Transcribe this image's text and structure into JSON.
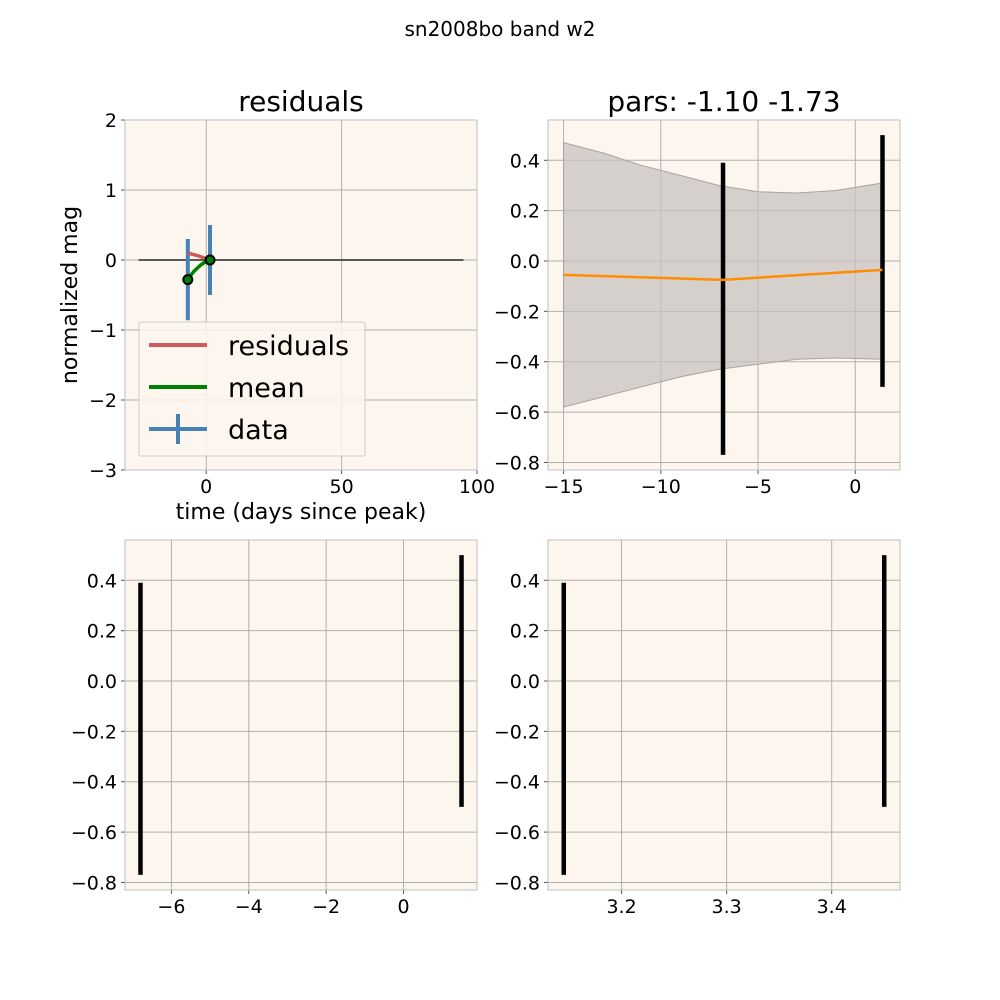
{
  "figure": {
    "suptitle": "sn2008bo band w2"
  },
  "colors": {
    "panel_bg": "#fdf6ee",
    "grid": "#b0b0b0",
    "spine": "#bfbfbf",
    "residuals": "#cd5c5c",
    "mean": "#008000",
    "data": "#4682b4",
    "fit_line": "#ff8c00",
    "band_fill": "#c8c3c0",
    "errorbar": "#000000",
    "zero_line": "#595959"
  },
  "chart_data": [
    {
      "id": "residuals",
      "type": "line",
      "title": "residuals",
      "xlabel": "time (days since peak)",
      "ylabel": "normalized mag",
      "xlim": [
        -30,
        100
      ],
      "ylim": [
        -3,
        2
      ],
      "xticks": [
        0,
        50,
        100
      ],
      "yticks": [
        -3,
        -2,
        -1,
        0,
        1,
        2
      ],
      "grid": true,
      "legend": {
        "position": "lower-left",
        "entries": [
          "residuals",
          "mean",
          "data"
        ]
      },
      "zero_line": {
        "x": [
          -25,
          95
        ],
        "y": 0
      },
      "series": [
        {
          "name": "residuals",
          "x": [
            -6.8,
            -3.0,
            1.4
          ],
          "y": [
            0.1,
            0.06,
            0.0
          ]
        },
        {
          "name": "mean",
          "x": [
            -6.8,
            -4.5,
            -2.0,
            0.0,
            1.4
          ],
          "y": [
            -0.27,
            -0.16,
            -0.07,
            -0.02,
            0.0
          ]
        }
      ],
      "errorbars": {
        "name": "data",
        "x": [
          -6.8,
          1.4
        ],
        "y": [
          -0.28,
          0.0
        ],
        "yerr": [
          0.58,
          0.5
        ],
        "xerr": [
          0,
          0
        ]
      }
    },
    {
      "id": "pars",
      "type": "line",
      "title": "pars: -1.10 -1.73",
      "xlim": [
        -15.8,
        2.3
      ],
      "ylim": [
        -0.83,
        0.56
      ],
      "xticks": [
        -15,
        -10,
        -5,
        0
      ],
      "yticks": [
        -0.8,
        -0.6,
        -0.4,
        -0.2,
        0.0,
        0.2,
        0.4
      ],
      "grid": true,
      "band": {
        "x": [
          -15,
          -13,
          -11,
          -9,
          -7,
          -5,
          -3,
          -1,
          1.4
        ],
        "upper": [
          0.47,
          0.43,
          0.38,
          0.34,
          0.3,
          0.275,
          0.27,
          0.28,
          0.31
        ],
        "lower": [
          -0.58,
          -0.54,
          -0.5,
          -0.46,
          -0.43,
          -0.41,
          -0.39,
          -0.385,
          -0.39
        ]
      },
      "series": [
        {
          "name": "fit",
          "x": [
            -15,
            -6.8,
            1.4
          ],
          "y": [
            -0.055,
            -0.075,
            -0.035
          ]
        }
      ],
      "errorbars": {
        "x": [
          -6.8,
          1.4
        ],
        "y": [
          -0.19,
          0.0
        ],
        "yerr": [
          0.58,
          0.5
        ]
      }
    },
    {
      "id": "bottom-left",
      "type": "scatter",
      "xlim": [
        -7.2,
        1.9
      ],
      "ylim": [
        -0.83,
        0.56
      ],
      "xticks": [
        -6,
        -4,
        -2,
        0
      ],
      "yticks": [
        -0.8,
        -0.6,
        -0.4,
        -0.2,
        0.0,
        0.2,
        0.4
      ],
      "grid": true,
      "errorbars": {
        "x": [
          -6.8,
          1.5
        ],
        "y": [
          -0.19,
          0.0
        ],
        "yerr": [
          0.58,
          0.5
        ]
      }
    },
    {
      "id": "bottom-right",
      "type": "scatter",
      "xlim": [
        3.13,
        3.465
      ],
      "ylim": [
        -0.83,
        0.56
      ],
      "xticks": [
        3.2,
        3.3,
        3.4
      ],
      "yticks": [
        -0.8,
        -0.6,
        -0.4,
        -0.2,
        0.0,
        0.2,
        0.4
      ],
      "grid": true,
      "errorbars": {
        "x": [
          3.145,
          3.45
        ],
        "y": [
          -0.19,
          0.0
        ],
        "yerr": [
          0.58,
          0.5
        ]
      }
    }
  ]
}
